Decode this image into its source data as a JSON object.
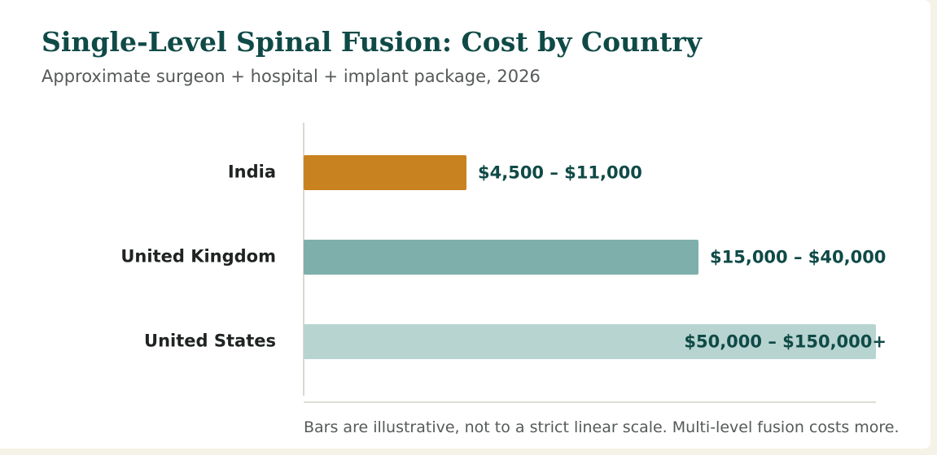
{
  "header": {
    "title": "Single-Level Spinal Fusion: Cost by Country",
    "subtitle": "Approximate surgeon + hospital + implant package, 2026"
  },
  "chart_data": {
    "type": "bar",
    "orientation": "horizontal",
    "title": "Single-Level Spinal Fusion: Cost by Country",
    "subtitle": "Approximate surgeon + hospital + implant package, 2026",
    "categories": [
      "India",
      "United Kingdom",
      "United States"
    ],
    "values": [
      {
        "category": "India",
        "low": 4500,
        "high": 11000,
        "label": "$4,500 – $11,000",
        "color": "#c98220",
        "relative_length": 0.285
      },
      {
        "category": "United Kingdom",
        "low": 15000,
        "high": 40000,
        "label": "$15,000 – $40,000",
        "color": "#7fafaa",
        "relative_length": 0.69
      },
      {
        "category": "United States",
        "low": 50000,
        "high": 150000,
        "label": "$50,000 – $150,000+",
        "color": "#b8d4d0",
        "relative_length": 1.0
      }
    ],
    "scale_note": "illustrative, non-linear",
    "grid": false,
    "legend": "none"
  },
  "footnote": "Bars are illustrative, not to a strict linear scale. Multi-level fusion costs more."
}
